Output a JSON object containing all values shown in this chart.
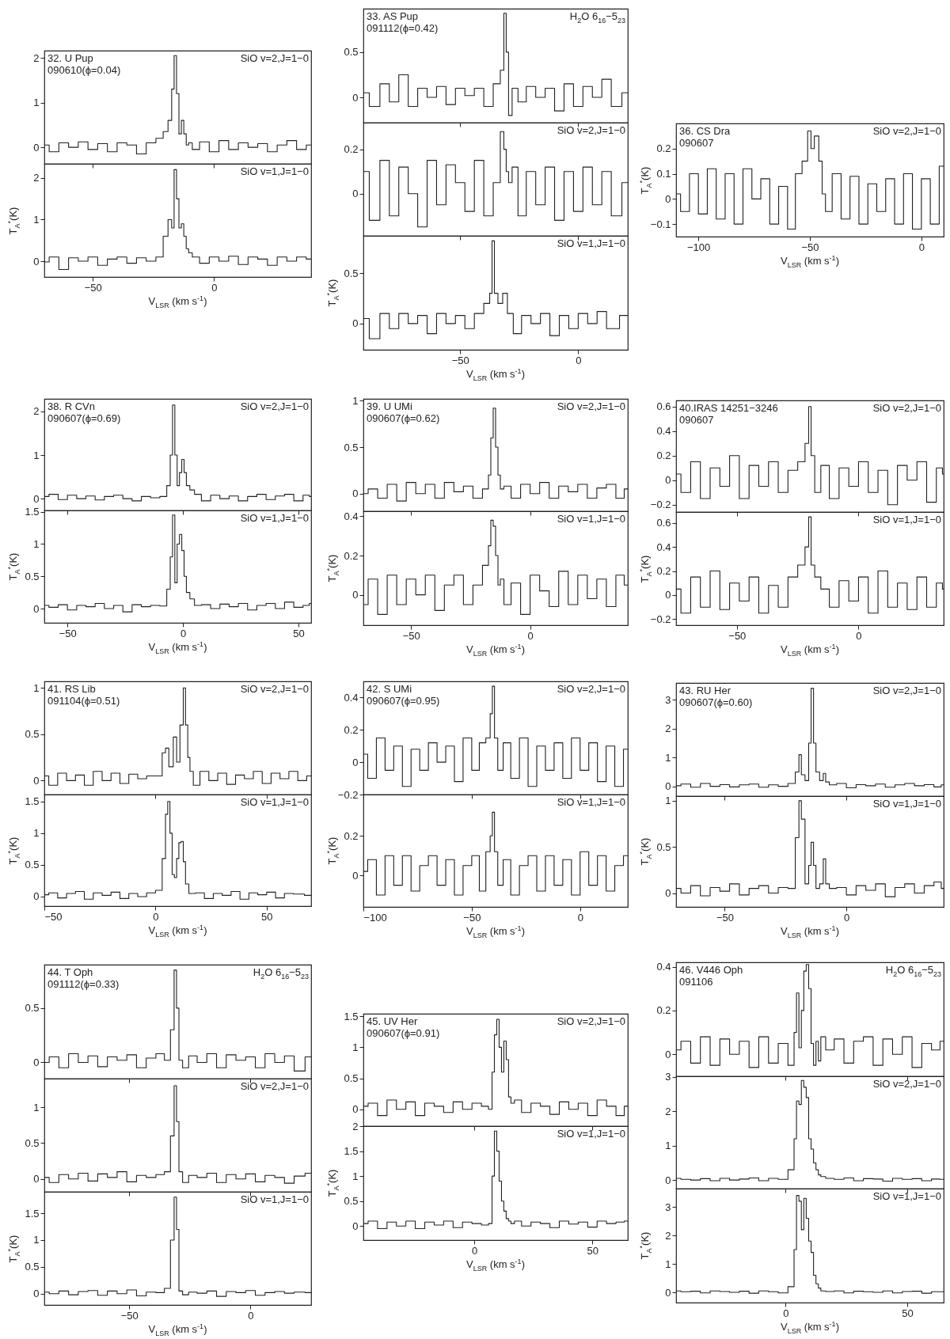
{
  "chart_data": [
    {
      "type": "step",
      "color": "#222222",
      "xlim": [
        -70,
        40
      ],
      "xticks": [
        -50,
        0
      ],
      "ylim": [
        -0.37,
        2.16
      ],
      "yticks": [
        0,
        1,
        2
      ],
      "tick_labels": "y",
      "annotations": [
        "32. U Pup",
        "090610(ϕ=0.04)",
        "SiO v=2,J=1−0"
      ],
      "x": [
        -70,
        -66,
        -62,
        -58,
        -54,
        -50,
        -46,
        -42,
        -38,
        -34,
        -30,
        -26,
        -22,
        -20,
        -18,
        -17,
        -16,
        -15,
        -14,
        -13,
        -12,
        -11,
        -10,
        -8,
        -4,
        0,
        4,
        8,
        12,
        16,
        20,
        24,
        28,
        32,
        36,
        40
      ],
      "values": [
        0.05,
        -0.1,
        0.1,
        0,
        0.12,
        -0.05,
        0.08,
        -0.1,
        0.1,
        0.05,
        -0.15,
        0.1,
        0.2,
        0.35,
        0.6,
        1.3,
        2.05,
        1.2,
        0.3,
        0.6,
        0.3,
        0.05,
        0.1,
        -0.05,
        0.12,
        -0.1,
        0.15,
        -0.05,
        0.1,
        0,
        0.08,
        -0.1,
        0.05,
        0.15,
        -0.05,
        0.05
      ]
    },
    {
      "type": "step",
      "color": "#222222",
      "xlim": [
        -70,
        40
      ],
      "xticks": [
        -50,
        0
      ],
      "ylim": [
        -0.38,
        2.34
      ],
      "yticks": [
        0,
        1,
        2
      ],
      "xlabel": "V$_{LSR}$ (km s$^{-1}$)",
      "ylabel": "T$_{A}$$^{*}$(K)",
      "annotations": [
        "SiO v=1,J=1−0"
      ],
      "x": [
        -70,
        -66,
        -62,
        -58,
        -54,
        -50,
        -46,
        -42,
        -38,
        -34,
        -30,
        -26,
        -22,
        -20,
        -18,
        -17,
        -16,
        -15,
        -14,
        -13,
        -12,
        -11,
        -10,
        -8,
        -4,
        0,
        4,
        8,
        12,
        16,
        20,
        24,
        28,
        32,
        36,
        40
      ],
      "values": [
        -0.02,
        0.1,
        -0.2,
        0.08,
        0,
        0.1,
        -0.1,
        0.05,
        0.1,
        -0.05,
        0.08,
        0,
        0.1,
        0.6,
        1.0,
        0.8,
        2.2,
        1.5,
        0.8,
        0.9,
        0.6,
        0.3,
        0.2,
        0.1,
        -0.05,
        0.1,
        0,
        0.12,
        -0.08,
        0.1,
        0.05,
        -0.1,
        0.1,
        0,
        0.1,
        0.05
      ]
    },
    {
      "type": "step",
      "color": "#222222",
      "xlim": [
        -91,
        21
      ],
      "xticks": [
        -50,
        0
      ],
      "ylim": [
        -0.28,
        0.98
      ],
      "yticks": [
        0,
        0.5
      ],
      "tick_labels": "y",
      "annotations": [
        "33. AS Pup",
        "091112(ϕ=0.42)",
        "H$_{2}$O 6$_{16}$−5$_{23}$"
      ],
      "x": [
        -91,
        -86,
        -82,
        -78,
        -74,
        -70,
        -66,
        -62,
        -58,
        -54,
        -50,
        -46,
        -42,
        -38,
        -34,
        -32,
        -31,
        -30,
        -29,
        -27,
        -24,
        -20,
        -16,
        -12,
        -8,
        -4,
        0,
        4,
        8,
        12,
        16,
        21
      ],
      "values": [
        0.05,
        -0.1,
        0.15,
        -0.05,
        0.25,
        -0.1,
        0.1,
        0,
        0.12,
        -0.08,
        0.1,
        0.02,
        0.1,
        -0.1,
        0.15,
        0.3,
        0.93,
        0.5,
        -0.2,
        0.1,
        -0.05,
        0.12,
        0,
        0.1,
        -0.15,
        0.15,
        -0.1,
        0.12,
        0,
        0.2,
        -0.1,
        0.05
      ]
    },
    {
      "type": "step",
      "color": "#222222",
      "xlim": [
        -91,
        21
      ],
      "xticks": [
        -50,
        0
      ],
      "ylim": [
        -0.19,
        0.32
      ],
      "yticks": [
        0,
        0.2
      ],
      "tick_labels": "y",
      "annotations": [
        "SiO v=2,J=1−0"
      ],
      "x": [
        -91,
        -86,
        -82,
        -78,
        -74,
        -70,
        -66,
        -62,
        -58,
        -54,
        -50,
        -46,
        -42,
        -38,
        -34,
        -32,
        -31,
        -30,
        -29,
        -27,
        -24,
        -20,
        -16,
        -12,
        -8,
        -4,
        0,
        4,
        8,
        12,
        16,
        21
      ],
      "values": [
        0.1,
        -0.12,
        0.15,
        -0.1,
        0.12,
        0,
        -0.15,
        0.15,
        -0.05,
        0.13,
        0.05,
        -0.08,
        0.15,
        -0.1,
        0.05,
        0.28,
        0.2,
        0.1,
        0.05,
        0.12,
        -0.1,
        0.1,
        -0.05,
        0.12,
        -0.12,
        0.1,
        -0.08,
        0.12,
        -0.05,
        0.1,
        -0.1,
        0.05
      ]
    },
    {
      "type": "step",
      "color": "#222222",
      "xlim": [
        -91,
        21
      ],
      "xticks": [
        -50,
        0
      ],
      "ylim": [
        -0.26,
        0.87
      ],
      "yticks": [
        0,
        0.5
      ],
      "xlabel": "V$_{LSR}$ (km s$^{-1}$)",
      "ylabel": "T$_{A}$$^{*}$(K)",
      "annotations": [
        "SiO v=1,J=1−0"
      ],
      "x": [
        -91,
        -86,
        -82,
        -78,
        -74,
        -70,
        -66,
        -62,
        -58,
        -54,
        -50,
        -46,
        -42,
        -38,
        -37,
        -36,
        -35,
        -33,
        -31,
        -29,
        -26,
        -22,
        -18,
        -14,
        -10,
        -6,
        -2,
        2,
        6,
        10,
        14,
        21
      ],
      "values": [
        0.05,
        -0.15,
        0.1,
        -0.05,
        0.1,
        0,
        0.08,
        -0.1,
        0.1,
        0,
        0.08,
        -0.05,
        0.1,
        0.2,
        0.3,
        0.82,
        0.3,
        0.2,
        0.3,
        0.1,
        -0.1,
        0.08,
        0,
        0.1,
        -0.12,
        0.08,
        -0.05,
        0.1,
        0,
        0.12,
        -0.05,
        0.08
      ]
    },
    {
      "type": "step",
      "color": "#222222",
      "xlim": [
        -110,
        10
      ],
      "xticks": [
        -100,
        -50,
        0
      ],
      "ylim": [
        -0.15,
        0.3
      ],
      "yticks": [
        -0.1,
        0,
        0.1,
        0.2
      ],
      "xlabel": "V$_{LSR}$ (km s$^{-1}$)",
      "ylabel": "T$_{A}$$^{*}$(K)",
      "annotations": [
        "36. CS Dra",
        "090607",
        "SiO v=2,J=1−0"
      ],
      "x": [
        -110,
        -106,
        -102,
        -98,
        -94,
        -90,
        -86,
        -82,
        -78,
        -74,
        -70,
        -66,
        -62,
        -58,
        -55,
        -52,
        -50,
        -49,
        -47,
        -45,
        -44,
        -42,
        -38,
        -34,
        -30,
        -26,
        -22,
        -18,
        -14,
        -10,
        -6,
        -2,
        2,
        6,
        10
      ],
      "values": [
        0.02,
        -0.05,
        0.1,
        -0.06,
        0.12,
        -0.08,
        0.1,
        -0.1,
        0.12,
        0,
        0.08,
        -0.1,
        0.05,
        -0.12,
        0.1,
        0.15,
        0.27,
        0.2,
        0.25,
        0.15,
        0.02,
        -0.05,
        0.1,
        -0.08,
        0.09,
        -0.1,
        0.06,
        -0.05,
        0.08,
        -0.1,
        0.1,
        -0.12,
        0.08,
        -0.1,
        0.13
      ]
    },
    {
      "type": "step",
      "color": "#222222",
      "xlim": [
        -60,
        55.5
      ],
      "xticks": [
        -50,
        0,
        50
      ],
      "ylim": [
        -0.27,
        2.29
      ],
      "yticks": [
        0,
        1,
        2
      ],
      "tick_labels": "y",
      "annotations": [
        "38. R CVn",
        "090607(ϕ=0.69)",
        "SiO v=2,J=1−0"
      ],
      "x": [
        -60,
        -56,
        -52,
        -48,
        -44,
        -40,
        -36,
        -32,
        -28,
        -24,
        -20,
        -16,
        -12,
        -8,
        -6,
        -5,
        -4,
        -3,
        -2,
        -1,
        0,
        1,
        2,
        4,
        6,
        10,
        14,
        18,
        22,
        26,
        30,
        34,
        38,
        42,
        46,
        50,
        54,
        55.5
      ],
      "values": [
        0.05,
        0.1,
        -0.02,
        0.08,
        0,
        0.06,
        -0.03,
        0.05,
        0.08,
        0,
        -0.05,
        0.05,
        0.02,
        0.05,
        0.3,
        1.0,
        2.15,
        1.0,
        0.3,
        0.6,
        0.9,
        0.6,
        0.3,
        0.2,
        0.1,
        -0.05,
        0.08,
        0,
        0.06,
        -0.05,
        0.05,
        0.1,
        -0.02,
        0.06,
        0.1,
        -0.05,
        0.08,
        0.05
      ]
    },
    {
      "type": "step",
      "color": "#222222",
      "xlim": [
        -60,
        55.5
      ],
      "xticks": [
        -50,
        0,
        50
      ],
      "ylim": [
        -0.22,
        1.52
      ],
      "yticks": [
        0,
        0.5,
        1,
        1.5
      ],
      "xlabel": "V$_{LSR}$ (km s$^{-1}$)",
      "ylabel": "T$_{A}$$^{*}$(K)",
      "annotations": [
        "SiO v=1,J=1−0"
      ],
      "x": [
        -60,
        -56,
        -52,
        -48,
        -44,
        -40,
        -36,
        -32,
        -28,
        -24,
        -20,
        -16,
        -12,
        -8,
        -6,
        -5,
        -4,
        -3,
        -2,
        -1,
        0,
        1,
        2,
        4,
        6,
        10,
        14,
        18,
        22,
        26,
        30,
        34,
        38,
        42,
        46,
        50,
        54,
        55.5
      ],
      "values": [
        0.05,
        0.02,
        0.06,
        -0.02,
        0.05,
        0.03,
        0.08,
        0,
        0.05,
        -0.05,
        0.06,
        0.03,
        0.05,
        0.04,
        0.3,
        0.8,
        1.45,
        0.4,
        1.0,
        1.15,
        0.9,
        0.5,
        0.25,
        0.15,
        0.05,
        0.06,
        0,
        0.07,
        0.03,
        0.08,
        -0.02,
        0.05,
        0.08,
        0,
        0.1,
        0.02,
        0.05,
        0.08
      ]
    },
    {
      "type": "step",
      "color": "#222222",
      "xlim": [
        -70,
        41
      ],
      "xticks": [
        -50,
        0
      ],
      "ylim": [
        -0.19,
        1.02
      ],
      "yticks": [
        0,
        0.5,
        1
      ],
      "tick_labels": "y",
      "annotations": [
        "39. U UMi",
        "090607(ϕ=0.62)",
        "SiO v=2,J=1−0"
      ],
      "x": [
        -70,
        -66,
        -62,
        -58,
        -54,
        -50,
        -46,
        -42,
        -38,
        -34,
        -30,
        -26,
        -22,
        -18,
        -17,
        -16,
        -15,
        -14,
        -13,
        -12,
        -10,
        -6,
        -2,
        2,
        6,
        10,
        14,
        18,
        22,
        26,
        30,
        34,
        38,
        41
      ],
      "values": [
        0,
        0.05,
        -0.05,
        0.1,
        -0.08,
        0.12,
        0,
        0.1,
        -0.05,
        0.12,
        0.02,
        0.08,
        -0.05,
        0.05,
        0.2,
        0.6,
        0.92,
        0.5,
        0.2,
        0.05,
        0.08,
        -0.05,
        0.1,
        0,
        0.12,
        -0.05,
        0.08,
        0.02,
        0.1,
        -0.05,
        0.06,
        0.1,
        -0.05,
        0.05
      ]
    },
    {
      "type": "step",
      "color": "#222222",
      "xlim": [
        -70,
        41
      ],
      "xticks": [
        -50,
        0
      ],
      "ylim": [
        -0.155,
        0.426
      ],
      "yticks": [
        0,
        0.2,
        0.4
      ],
      "xlabel": "V$_{LSR}$ (km s$^{-1}$)",
      "ylabel": "T$_{A}$$^{*}$(K)",
      "annotations": [
        "SiO v=1,J=1−0"
      ],
      "x": [
        -70,
        -66,
        -62,
        -58,
        -54,
        -50,
        -46,
        -42,
        -38,
        -34,
        -30,
        -26,
        -22,
        -18,
        -17,
        -16,
        -15,
        -14,
        -13,
        -12,
        -10,
        -6,
        -2,
        2,
        6,
        10,
        14,
        18,
        22,
        26,
        30,
        34,
        38,
        41
      ],
      "values": [
        -0.05,
        0.08,
        -0.1,
        0.1,
        -0.05,
        0.08,
        0,
        0.1,
        -0.08,
        0.05,
        0.1,
        -0.05,
        0.05,
        0.15,
        0.25,
        0.38,
        0.35,
        0.2,
        0.05,
        0.08,
        -0.05,
        0.06,
        -0.1,
        0.1,
        0.02,
        -0.06,
        0.12,
        -0.05,
        0.1,
        -0.02,
        0.08,
        -0.06,
        0.1,
        0.05
      ]
    },
    {
      "type": "step",
      "color": "#222222",
      "xlim": [
        -75,
        35
      ],
      "xticks": [
        -50,
        0
      ],
      "ylim": [
        -0.26,
        0.65
      ],
      "yticks": [
        -0.2,
        0,
        0.2,
        0.4,
        0.6
      ],
      "tick_labels": "y",
      "annotations": [
        "40.IRAS 14251−3246",
        "090607",
        "SiO v=2,J=1−0"
      ],
      "x": [
        -75,
        -71,
        -67,
        -63,
        -59,
        -55,
        -51,
        -47,
        -43,
        -39,
        -35,
        -31,
        -27,
        -23,
        -21,
        -20,
        -19,
        -17,
        -14,
        -10,
        -6,
        -2,
        2,
        6,
        10,
        14,
        18,
        22,
        26,
        30,
        34,
        35
      ],
      "values": [
        0.05,
        -0.1,
        0.15,
        -0.15,
        0.1,
        -0.05,
        0.2,
        -0.15,
        0.12,
        -0.05,
        0.15,
        -0.1,
        0.08,
        0.15,
        0.3,
        0.6,
        0.2,
        -0.1,
        0.12,
        -0.15,
        0.1,
        -0.05,
        0.15,
        -0.1,
        0.08,
        -0.2,
        0.12,
        0,
        0.15,
        -0.18,
        0.1,
        0.05
      ]
    },
    {
      "type": "step",
      "color": "#222222",
      "xlim": [
        -75,
        35
      ],
      "xticks": [
        -50,
        0
      ],
      "ylim": [
        -0.25,
        0.69
      ],
      "yticks": [
        -0.2,
        0,
        0.2,
        0.4,
        0.6
      ],
      "xlabel": "V$_{LSR}$ (km s$^{-1}$)",
      "ylabel": "T$_{A}$$^{*}$(K)",
      "annotations": [
        "SiO v=1,J=1−0"
      ],
      "x": [
        -75,
        -71,
        -67,
        -63,
        -59,
        -55,
        -51,
        -47,
        -43,
        -39,
        -35,
        -31,
        -27,
        -23,
        -21,
        -20,
        -19,
        -17,
        -14,
        -10,
        -6,
        -2,
        2,
        6,
        10,
        14,
        18,
        22,
        26,
        30,
        34,
        35
      ],
      "values": [
        0.05,
        -0.15,
        0.15,
        -0.1,
        0.2,
        -0.12,
        0.1,
        -0.05,
        0.15,
        -0.15,
        0.08,
        -0.1,
        0.15,
        0.25,
        0.4,
        0.65,
        0.25,
        0.15,
        0.05,
        -0.1,
        0.12,
        -0.05,
        0.15,
        -0.15,
        0.2,
        -0.1,
        0.1,
        -0.12,
        0.15,
        -0.1,
        0.1,
        0.05
      ]
    },
    {
      "type": "step",
      "color": "#222222",
      "xlim": [
        -50,
        70
      ],
      "xticks": [
        -50,
        0,
        50
      ],
      "ylim": [
        -0.15,
        1.07
      ],
      "yticks": [
        0,
        0.5,
        1
      ],
      "tick_labels": "y",
      "annotations": [
        "41. RS Lib",
        "091104(ϕ=0.51)",
        "SiO v=2,J=1−0"
      ],
      "x": [
        -50,
        -46,
        -42,
        -38,
        -34,
        -30,
        -26,
        -22,
        -18,
        -14,
        -10,
        -6,
        -2,
        2,
        4,
        5,
        7,
        9,
        10,
        12,
        13,
        14,
        15,
        16,
        18,
        22,
        26,
        30,
        34,
        38,
        42,
        46,
        50,
        54,
        58,
        62,
        66,
        70
      ],
      "values": [
        0.05,
        -0.05,
        0.08,
        0,
        0.06,
        -0.05,
        0.1,
        0,
        0.08,
        -0.03,
        0.07,
        0.02,
        0.05,
        0.05,
        0.3,
        0.35,
        0.15,
        0.47,
        0.2,
        0.6,
        1.0,
        0.6,
        0.25,
        0.1,
        -0.05,
        0.1,
        0,
        0.08,
        -0.04,
        0.06,
        0.02,
        0.1,
        -0.03,
        0.08,
        0.02,
        0.1,
        0,
        0.05
      ]
    },
    {
      "type": "step",
      "color": "#222222",
      "xlim": [
        -50,
        70
      ],
      "xticks": [
        -50,
        0,
        50
      ],
      "ylim": [
        -0.15,
        1.61
      ],
      "yticks": [
        0,
        0.5,
        1,
        1.5
      ],
      "xlabel": "V$_{LSR}$ (km s$^{-1}$)",
      "ylabel": "T$_{A}$$^{*}$(K)",
      "annotations": [
        "SiO v=1,J=1−0"
      ],
      "x": [
        -50,
        -46,
        -42,
        -38,
        -34,
        -30,
        -26,
        -22,
        -18,
        -14,
        -10,
        -6,
        -2,
        2,
        4,
        5,
        6,
        7,
        8,
        9,
        10,
        11,
        12,
        13,
        14,
        16,
        20,
        24,
        28,
        32,
        36,
        40,
        44,
        48,
        52,
        56,
        60,
        64,
        70
      ],
      "values": [
        0.03,
        0.06,
        -0.02,
        0.05,
        0.08,
        -0.04,
        0.06,
        0.02,
        0.07,
        -0.03,
        0.05,
        0,
        0.06,
        0.1,
        0.6,
        1.3,
        1.5,
        1.0,
        0.35,
        0.3,
        0.6,
        0.85,
        0.87,
        0.55,
        0.2,
        0.05,
        0.06,
        -0.03,
        0.05,
        0.02,
        0.08,
        -0.04,
        0.06,
        0.03,
        0.07,
        -0.02,
        0.05,
        0.04,
        0.02
      ]
    },
    {
      "type": "step",
      "color": "#222222",
      "xlim": [
        -100,
        22
      ],
      "xticks": [
        -100,
        -50,
        0
      ],
      "ylim": [
        -0.2,
        0.5
      ],
      "yticks": [
        -0.2,
        0,
        0.2,
        0.4
      ],
      "tick_labels": "y",
      "annotations": [
        "42. S UMi",
        "090607(ϕ=0.95)",
        "SiO v=2,J=1−0"
      ],
      "x": [
        -100,
        -96,
        -92,
        -88,
        -84,
        -80,
        -76,
        -72,
        -68,
        -64,
        -60,
        -56,
        -52,
        -48,
        -45,
        -42,
        -41,
        -40,
        -39,
        -37,
        -34,
        -30,
        -26,
        -22,
        -18,
        -14,
        -10,
        -6,
        -2,
        2,
        6,
        10,
        14,
        18,
        22
      ],
      "values": [
        0.05,
        -0.1,
        0.15,
        -0.05,
        0.1,
        -0.15,
        0.08,
        -0.05,
        0.12,
        0,
        0.1,
        -0.12,
        0.15,
        -0.05,
        0.12,
        0.15,
        0.3,
        0.47,
        0.15,
        -0.05,
        0.12,
        -0.1,
        0.15,
        -0.15,
        0.1,
        -0.05,
        0.12,
        -0.1,
        0.15,
        -0.05,
        0.12,
        -0.12,
        0.1,
        -0.15,
        0.08
      ]
    },
    {
      "type": "step",
      "color": "#222222",
      "xlim": [
        -100,
        22
      ],
      "xticks": [
        -100,
        -50,
        0
      ],
      "ylim": [
        -0.16,
        0.41
      ],
      "yticks": [
        0,
        0.2
      ],
      "xlabel": "V$_{LSR}$ (km s$^{-1}$)",
      "ylabel": "T$_{A}$$^{*}$(K)",
      "annotations": [
        "SiO v=1,J=1−0"
      ],
      "x": [
        -100,
        -96,
        -92,
        -88,
        -84,
        -80,
        -76,
        -72,
        -68,
        -64,
        -60,
        -56,
        -52,
        -48,
        -45,
        -42,
        -41,
        -40,
        -39,
        -37,
        -34,
        -30,
        -26,
        -22,
        -18,
        -14,
        -10,
        -6,
        -2,
        2,
        6,
        10,
        14,
        18,
        22
      ],
      "values": [
        0.02,
        0.08,
        -0.1,
        0.1,
        -0.05,
        0.1,
        -0.08,
        0.05,
        0.1,
        -0.05,
        0.08,
        -0.1,
        0.05,
        0.1,
        -0.08,
        0.12,
        0.2,
        0.32,
        0.12,
        -0.05,
        0.08,
        -0.1,
        0.05,
        0.1,
        -0.08,
        0.1,
        -0.05,
        0.08,
        -0.1,
        0.12,
        -0.05,
        0.1,
        -0.08,
        0.05,
        0.1
      ]
    },
    {
      "type": "step",
      "color": "#222222",
      "xlim": [
        -70,
        40
      ],
      "xticks": [
        -50,
        0
      ],
      "ylim": [
        -0.34,
        3.59
      ],
      "yticks": [
        0,
        1,
        2,
        3
      ],
      "tick_labels": "y",
      "annotations": [
        "43. RU Her",
        "090607(ϕ=0.60)",
        "SiO v=2,J=1−0"
      ],
      "x": [
        -70,
        -66,
        -62,
        -58,
        -54,
        -50,
        -46,
        -42,
        -38,
        -34,
        -30,
        -26,
        -22,
        -20,
        -19,
        -18,
        -16,
        -15,
        -14,
        -13,
        -12,
        -10,
        -9,
        -8,
        -6,
        -2,
        2,
        6,
        10,
        14,
        18,
        22,
        26,
        30,
        34,
        38,
        40
      ],
      "values": [
        0.02,
        0.08,
        -0.03,
        0.1,
        0,
        0.06,
        -0.02,
        0.05,
        0.08,
        -0.03,
        0.05,
        0,
        0.1,
        0.5,
        1.1,
        0.4,
        0.2,
        1.5,
        3.4,
        1.5,
        0.5,
        0.2,
        0.45,
        0.15,
        0.05,
        0.1,
        -0.05,
        0.06,
        0.02,
        0.08,
        -0.03,
        0.05,
        0.1,
        0.02,
        0.06,
        -0.02,
        0.05
      ]
    },
    {
      "type": "step",
      "color": "#222222",
      "xlim": [
        -70,
        40
      ],
      "xticks": [
        -50,
        0
      ],
      "ylim": [
        -0.15,
        1.05
      ],
      "yticks": [
        0,
        0.5,
        1
      ],
      "xlabel": "V$_{LSR}$ (km s$^{-1}$)",
      "ylabel": "T$_{A}$$^{*}$(K)",
      "annotations": [
        "SiO v=1,J=1−0"
      ],
      "x": [
        -70,
        -66,
        -62,
        -58,
        -54,
        -50,
        -46,
        -42,
        -38,
        -34,
        -30,
        -26,
        -22,
        -20,
        -19,
        -18,
        -16,
        -15,
        -14,
        -13,
        -12,
        -10,
        -9,
        -8,
        -6,
        -2,
        2,
        6,
        10,
        14,
        18,
        22,
        26,
        30,
        34,
        38,
        40
      ],
      "values": [
        0.05,
        0,
        0.08,
        -0.03,
        0.06,
        0.02,
        0.1,
        -0.02,
        0.05,
        0.08,
        0,
        0.06,
        0.05,
        0.6,
        1.0,
        0.8,
        0.1,
        0.3,
        0.55,
        0.3,
        0.05,
        0.1,
        0.37,
        0.1,
        0.05,
        0.06,
        -0.02,
        0.08,
        0.03,
        0.1,
        -0.04,
        0.06,
        0.1,
        0,
        0.08,
        0.12,
        0.05
      ]
    },
    {
      "type": "step",
      "color": "#222222",
      "xlim": [
        -85,
        25
      ],
      "xticks": [
        -50,
        0
      ],
      "ylim": [
        -0.15,
        0.9
      ],
      "yticks": [
        0,
        0.5
      ],
      "tick_labels": "y",
      "annotations": [
        "44. T Oph",
        "091112(ϕ=0.33)",
        "H$_{2}$O 6$_{16}$−5$_{23}$"
      ],
      "x": [
        -85,
        -81,
        -77,
        -73,
        -69,
        -65,
        -61,
        -57,
        -53,
        -49,
        -45,
        -41,
        -37,
        -34,
        -32,
        -31,
        -30,
        -29,
        -27,
        -24,
        -20,
        -16,
        -12,
        -8,
        -4,
        0,
        4,
        8,
        12,
        16,
        20,
        25
      ],
      "values": [
        0,
        0.05,
        -0.05,
        0.08,
        0,
        0.06,
        -0.04,
        0.05,
        0.02,
        0.07,
        -0.05,
        0.04,
        0.08,
        0.02,
        0.3,
        0.85,
        0.5,
        0.02,
        -0.05,
        0.06,
        0,
        0.08,
        -0.05,
        0.07,
        0.02,
        0.05,
        -0.05,
        0.08,
        0,
        0.06,
        -0.08,
        0.05
      ]
    },
    {
      "type": "step",
      "color": "#222222",
      "xlim": [
        -85,
        25
      ],
      "xticks": [
        -50,
        0
      ],
      "ylim": [
        -0.18,
        1.4
      ],
      "yticks": [
        0,
        0.5,
        1
      ],
      "tick_labels": "y",
      "annotations": [
        "SiO v=2,J=1−0"
      ],
      "x": [
        -85,
        -81,
        -77,
        -73,
        -69,
        -65,
        -61,
        -57,
        -53,
        -49,
        -45,
        -41,
        -37,
        -34,
        -32,
        -31,
        -30,
        -29,
        -27,
        -24,
        -20,
        -16,
        -12,
        -8,
        -4,
        0,
        4,
        8,
        12,
        16,
        20,
        25
      ],
      "values": [
        0.02,
        -0.05,
        0.06,
        0,
        0.08,
        -0.03,
        0.07,
        0.02,
        0.1,
        -0.04,
        0.05,
        0.02,
        0.06,
        0.1,
        0.6,
        1.3,
        0.8,
        0.1,
        -0.05,
        0.05,
        0.02,
        0.08,
        -0.05,
        0.06,
        0,
        0.07,
        -0.04,
        0.05,
        0.02,
        -0.06,
        0.04,
        0.08
      ]
    },
    {
      "type": "step",
      "color": "#222222",
      "xlim": [
        -85,
        25
      ],
      "xticks": [
        -50,
        0
      ],
      "ylim": [
        -0.21,
        1.9
      ],
      "yticks": [
        0,
        0.5,
        1,
        1.5
      ],
      "xlabel": "V$_{LSR}$ (km s$^{-1}$)",
      "ylabel": "T$_{A}$$^{*}$(K)",
      "annotations": [
        "SiO v=1,J=1−0"
      ],
      "x": [
        -85,
        -81,
        -77,
        -73,
        -69,
        -65,
        -61,
        -57,
        -53,
        -49,
        -45,
        -41,
        -37,
        -34,
        -32,
        -31,
        -30,
        -29,
        -27,
        -24,
        -20,
        -16,
        -12,
        -8,
        -4,
        0,
        4,
        8,
        12,
        16,
        20,
        25
      ],
      "values": [
        0.03,
        0,
        0.05,
        -0.02,
        0.04,
        0.06,
        -0.03,
        0.05,
        0,
        0.07,
        -0.04,
        0.03,
        0.02,
        0.1,
        1.0,
        1.8,
        1.2,
        0.05,
        -0.02,
        0.03,
        0.01,
        0.05,
        -0.05,
        0.04,
        0.02,
        0.06,
        -0.03,
        0.02,
        0.04,
        0.01,
        0.03,
        0.02
      ]
    },
    {
      "type": "step",
      "color": "#222222",
      "xlim": [
        -47,
        65
      ],
      "xticks": [
        0,
        50
      ],
      "ylim": [
        -0.27,
        1.54
      ],
      "yticks": [
        0,
        0.5,
        1,
        1.5
      ],
      "tick_labels": "y",
      "annotations": [
        "45. UV Her",
        "090607(ϕ=0.91)",
        "SiO v=2,J=1−0"
      ],
      "x": [
        -47,
        -43,
        -39,
        -35,
        -31,
        -27,
        -23,
        -19,
        -15,
        -11,
        -7,
        -3,
        1,
        5,
        7,
        8,
        9,
        10,
        11,
        12,
        13,
        14,
        15,
        16,
        18,
        22,
        26,
        30,
        34,
        38,
        42,
        46,
        50,
        54,
        58,
        62,
        65
      ],
      "values": [
        0.05,
        0.1,
        -0.1,
        0.15,
        0,
        0.12,
        -0.1,
        0.1,
        0.05,
        -0.05,
        0.12,
        0,
        0.1,
        0.05,
        0,
        0.6,
        1.2,
        1.45,
        1.0,
        0.6,
        1.1,
        0.8,
        0.2,
        0.1,
        0.15,
        -0.05,
        0.1,
        0.05,
        -0.08,
        0.12,
        0,
        0.1,
        -0.1,
        0.15,
        0.05,
        -0.1,
        0.05
      ]
    },
    {
      "type": "step",
      "color": "#222222",
      "xlim": [
        -47,
        65
      ],
      "xticks": [
        0,
        50
      ],
      "ylim": [
        -0.28,
        2
      ],
      "yticks": [
        0,
        0.5,
        1,
        1.5,
        2
      ],
      "xlabel": "V$_{LSR}$ (km s$^{-1}$)",
      "ylabel": "T$_{A}$$^{*}$(K)",
      "annotations": [
        "SiO v=1,J=1−0"
      ],
      "x": [
        -47,
        -43,
        -39,
        -35,
        -31,
        -27,
        -23,
        -19,
        -15,
        -11,
        -7,
        -3,
        1,
        5,
        7,
        8,
        9,
        10,
        11,
        12,
        13,
        14,
        15,
        16,
        18,
        22,
        26,
        30,
        34,
        38,
        42,
        46,
        50,
        54,
        58,
        62,
        65
      ],
      "values": [
        0.05,
        0.1,
        -0.05,
        0.08,
        0,
        0.1,
        -0.05,
        0.08,
        0.02,
        0.1,
        -0.03,
        0.08,
        0.05,
        0.02,
        0.05,
        1.0,
        1.9,
        1.5,
        0.9,
        0.5,
        0.3,
        0.15,
        0.1,
        0.05,
        0.1,
        0,
        0.08,
        0.05,
        -0.03,
        0.1,
        0.04,
        0.08,
        -0.02,
        0.1,
        0.05,
        0.08,
        0.1
      ]
    },
    {
      "type": "step",
      "color": "#222222",
      "xlim": [
        -45,
        65
      ],
      "xticks": [
        0,
        50
      ],
      "ylim": [
        -0.1,
        0.42
      ],
      "yticks": [
        0,
        0.2,
        0.4
      ],
      "tick_labels": "y",
      "annotations": [
        "46. V446 Oph",
        "091106",
        "H$_{2}$O 6$_{16}$−5$_{23}$"
      ],
      "x": [
        -45,
        -41,
        -37,
        -33,
        -29,
        -25,
        -21,
        -17,
        -13,
        -9,
        -5,
        -1,
        3,
        4,
        5,
        6,
        7,
        8,
        9,
        10,
        11,
        12,
        13,
        14,
        15,
        18,
        22,
        26,
        30,
        34,
        38,
        42,
        46,
        50,
        54,
        58,
        62,
        65
      ],
      "values": [
        0.02,
        0.06,
        -0.04,
        0.08,
        -0.05,
        0.07,
        0,
        0.06,
        -0.06,
        0.08,
        -0.04,
        0.05,
        -0.05,
        0.1,
        0.28,
        0.03,
        0.2,
        0.38,
        0.41,
        0.3,
        0.05,
        -0.05,
        0.06,
        -0.03,
        0.08,
        0.02,
        0.07,
        -0.04,
        0.06,
        0.08,
        -0.05,
        0.07,
        0,
        0.08,
        -0.06,
        0.05,
        0.02,
        0.06
      ]
    },
    {
      "type": "step",
      "color": "#222222",
      "xlim": [
        -45,
        65
      ],
      "xticks": [
        0,
        50
      ],
      "ylim": [
        -0.25,
        3.02
      ],
      "yticks": [
        0,
        1,
        2,
        3
      ],
      "tick_labels": "y",
      "annotations": [
        "SiO v=2,J=1−0"
      ],
      "x": [
        -45,
        -41,
        -37,
        -33,
        -29,
        -25,
        -21,
        -17,
        -13,
        -9,
        -5,
        -1,
        3,
        4,
        5,
        6,
        7,
        8,
        9,
        10,
        11,
        12,
        13,
        14,
        15,
        18,
        22,
        26,
        30,
        34,
        38,
        42,
        46,
        50,
        54,
        58,
        62,
        65
      ],
      "values": [
        0.05,
        0.02,
        0,
        0.04,
        -0.02,
        0.05,
        0,
        0.03,
        0.06,
        -0.02,
        0.05,
        0.02,
        0.3,
        1.2,
        2.3,
        2.2,
        2.9,
        2.7,
        2.4,
        1.2,
        0.9,
        0.5,
        0.3,
        0.15,
        0.1,
        0.05,
        0.02,
        0.06,
        -0.02,
        0.04,
        0.03,
        -0.03,
        0.05,
        0.02,
        0.04,
        -0.02,
        0.03,
        0.02
      ]
    },
    {
      "type": "step",
      "color": "#222222",
      "xlim": [
        -45,
        65
      ],
      "xticks": [
        0,
        50
      ],
      "ylim": [
        -0.36,
        3.64
      ],
      "yticks": [
        0,
        1,
        2,
        3
      ],
      "xlabel": "V$_{LSR}$ (km s$^{-1}$)",
      "ylabel": "T$_{A}$$^{*}$(K)",
      "annotations": [
        "SiO v=1,J=1−0"
      ],
      "x": [
        -45,
        -41,
        -37,
        -33,
        -29,
        -25,
        -21,
        -17,
        -13,
        -9,
        -5,
        -1,
        3,
        4,
        5,
        6,
        7,
        8,
        9,
        10,
        11,
        12,
        13,
        14,
        15,
        18,
        22,
        26,
        30,
        34,
        38,
        42,
        46,
        50,
        54,
        58,
        62,
        65
      ],
      "values": [
        0.05,
        0.02,
        0.04,
        -0.02,
        0.05,
        0.03,
        0,
        0.04,
        -0.03,
        0.05,
        0.02,
        -0.02,
        0.2,
        1.5,
        3.4,
        3.2,
        2.2,
        3.3,
        2.6,
        1.8,
        1.4,
        0.6,
        0.3,
        0.15,
        0.05,
        0.03,
        0.05,
        -0.02,
        0.04,
        0.02,
        0,
        0.05,
        -0.02,
        0.03,
        0.04,
        -0.03,
        0.02,
        0.02
      ]
    }
  ]
}
